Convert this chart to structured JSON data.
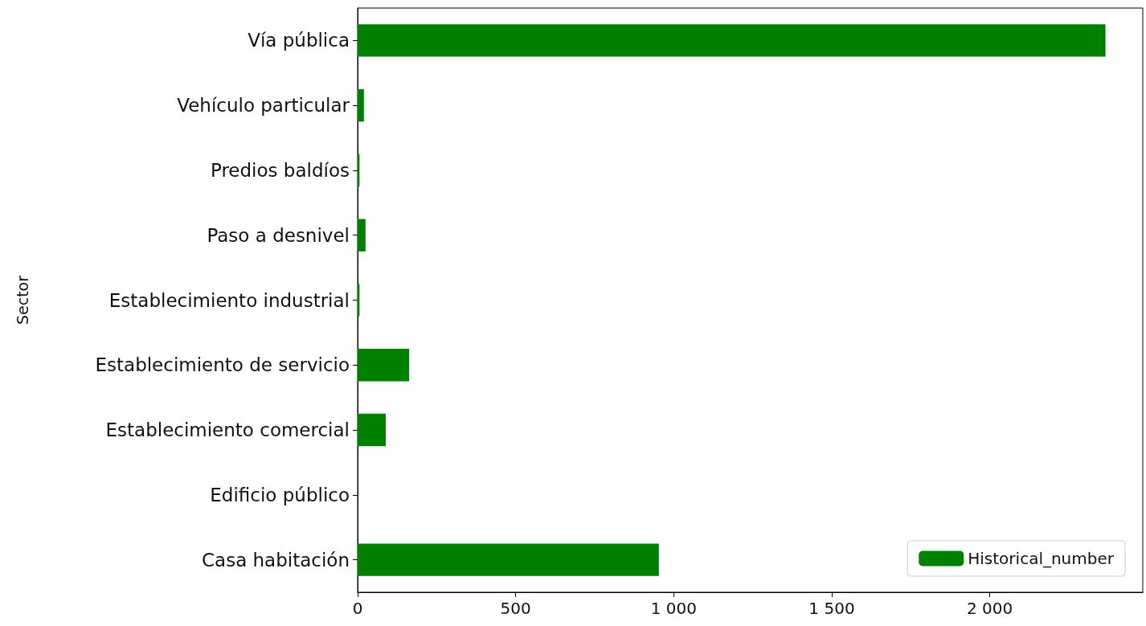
{
  "chart_data": {
    "type": "bar",
    "orientation": "horizontal",
    "ylabel": "Sector",
    "categories": [
      "Vía pública",
      "Vehículo particular",
      "Predios baldíos",
      "Paso a desnivel",
      "Establecimiento industrial",
      "Establecimiento de servicio",
      "Establecimiento comercial",
      "Edificio público",
      "Casa habitación"
    ],
    "series": [
      {
        "name": "Historical_number",
        "color": "#008000",
        "values": [
          2366,
          20,
          6,
          25,
          6,
          163,
          89,
          0,
          953
        ]
      }
    ],
    "xlim": [
      0,
      2484
    ],
    "xticks": [
      0,
      500,
      {
        "value": 1000,
        "label": "1 000"
      },
      {
        "value": 1500,
        "label": "1 500"
      },
      {
        "value": 2000,
        "label": "2 000"
      }
    ],
    "legend": "bottom right",
    "grid": false
  }
}
